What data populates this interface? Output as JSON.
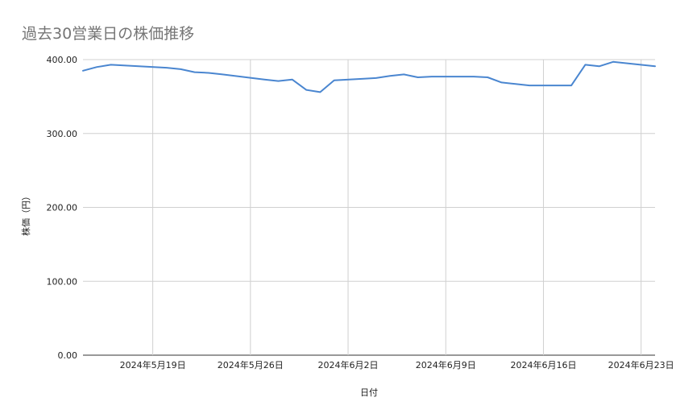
{
  "chart_data": {
    "type": "line",
    "title": "過去30営業日の株価推移",
    "xlabel": "日付",
    "ylabel": "株価（円）",
    "ylim": [
      0,
      400
    ],
    "yticks": [
      0,
      100,
      200,
      300,
      400
    ],
    "ytick_labels": [
      "0.00",
      "100.00",
      "200.00",
      "300.00",
      "400.00"
    ],
    "xlim": [
      "2024-05-14",
      "2024-06-24"
    ],
    "xticks": [
      "2024-05-19",
      "2024-05-26",
      "2024-06-02",
      "2024-06-09",
      "2024-06-16",
      "2024-06-23"
    ],
    "xtick_labels": [
      "2024年5月19日",
      "2024年5月26日",
      "2024年6月2日",
      "2024年6月9日",
      "2024年6月16日",
      "2024年6月23日"
    ],
    "grid": true,
    "legend": "none",
    "line_color": "#4a86d0",
    "series": [
      {
        "points": [
          [
            "2024-05-14",
            385
          ],
          [
            "2024-05-15",
            390
          ],
          [
            "2024-05-16",
            393
          ],
          [
            "2024-05-18",
            391
          ],
          [
            "2024-05-20",
            389
          ],
          [
            "2024-05-21",
            387
          ],
          [
            "2024-05-22",
            383
          ],
          [
            "2024-05-23",
            382
          ],
          [
            "2024-05-24",
            380
          ],
          [
            "2024-05-27",
            373
          ],
          [
            "2024-05-28",
            371
          ],
          [
            "2024-05-29",
            373
          ],
          [
            "2024-05-30",
            359
          ],
          [
            "2024-05-31",
            356
          ],
          [
            "2024-06-01",
            372
          ],
          [
            "2024-06-03",
            374
          ],
          [
            "2024-06-04",
            375
          ],
          [
            "2024-06-05",
            378
          ],
          [
            "2024-06-06",
            380
          ],
          [
            "2024-06-07",
            376
          ],
          [
            "2024-06-08",
            377
          ],
          [
            "2024-06-11",
            377
          ],
          [
            "2024-06-12",
            376
          ],
          [
            "2024-06-13",
            369
          ],
          [
            "2024-06-14",
            367
          ],
          [
            "2024-06-15",
            365
          ],
          [
            "2024-06-18",
            365
          ],
          [
            "2024-06-19",
            393
          ],
          [
            "2024-06-20",
            391
          ],
          [
            "2024-06-21",
            397
          ],
          [
            "2024-06-22",
            395
          ],
          [
            "2024-06-24",
            391
          ]
        ]
      }
    ]
  }
}
